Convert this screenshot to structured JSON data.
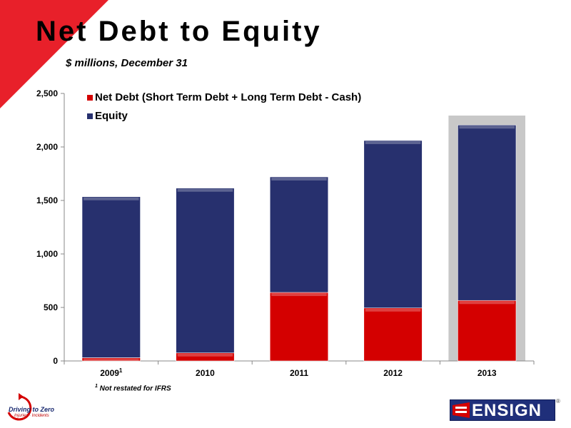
{
  "slide": {
    "title": "Net Debt to Equity",
    "subtitle": "$ millions, December 31",
    "footnote_marker": "1",
    "footnote_text": " Not restated for IFRS"
  },
  "logos": {
    "driving_to_zero": "Driving to Zero",
    "driving_to_zero_sub": "Injuries · Incidents",
    "ensign": "ENSIGN",
    "ensign_reg": "®"
  },
  "colors": {
    "net_debt": "#d40000",
    "equity": "#27306e",
    "highlight": "#c8c8c8",
    "corner": "#e8202a"
  },
  "chart_data": {
    "type": "bar",
    "stacked": true,
    "categories": [
      "2009",
      "2010",
      "2011",
      "2012",
      "2013"
    ],
    "category_superscripts": [
      "1",
      "",
      "",
      "",
      ""
    ],
    "series": [
      {
        "name": "Net Debt (Short Term Debt + Long Term Debt - Cash)",
        "values": [
          30,
          75,
          640,
          495,
          565
        ]
      },
      {
        "name": "Equity",
        "values": [
          1505,
          1540,
          1080,
          1565,
          1640
        ]
      }
    ],
    "ylim": [
      0,
      2500
    ],
    "yticks": [
      0,
      500,
      1000,
      1500,
      2000,
      2500
    ],
    "ytick_labels": [
      "0",
      "500",
      "1,000",
      "1,500",
      "2,000",
      "2,500"
    ],
    "highlighted_category": "2013",
    "legend_position": "top-left",
    "grid": false
  }
}
